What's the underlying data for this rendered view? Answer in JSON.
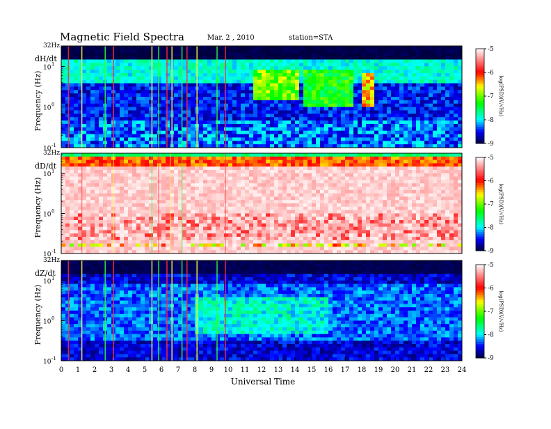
{
  "header": {
    "title": "Magnetic Field Spectra",
    "date": "Mar. 2 , 2010",
    "station": "station=STA"
  },
  "chart_data": {
    "type": "heatmap",
    "xlabel": "Universal Time",
    "xlim": [
      0,
      24
    ],
    "x_ticks": [
      "0",
      "1",
      "2",
      "3",
      "4",
      "5",
      "6",
      "7",
      "8",
      "9",
      "10",
      "11",
      "12",
      "13",
      "14",
      "15",
      "16",
      "17",
      "18",
      "19",
      "20",
      "21",
      "22",
      "23",
      "24"
    ],
    "y_scale": "log",
    "ylim": [
      0.1,
      32
    ],
    "y_top_label": "32Hz",
    "y_ticks": [
      {
        "base": "10",
        "exp": "1",
        "value": 10
      },
      {
        "base": "10",
        "exp": "0",
        "value": 1
      },
      {
        "base": "10",
        "exp": "-1",
        "value": 0.1
      }
    ],
    "colorbar": {
      "label": "log(PSD)(V/√Hz)",
      "range": [
        -9,
        -5
      ],
      "ticks": [
        "-5",
        "-6",
        "-7",
        "-8",
        "-9"
      ],
      "colors": [
        "#ffffff",
        "#ff0000",
        "#ffff00",
        "#00ff00",
        "#00ffff",
        "#0000ff",
        "#000040"
      ]
    },
    "panels": [
      {
        "component": "dH/dt",
        "ylabel": "Frequency (Hz)",
        "background_level": -8.2,
        "notable_features": [
          {
            "time_range_h": [
              11.5,
              14.2
            ],
            "freq_range_hz": [
              1,
              10
            ],
            "level": -6.8
          },
          {
            "time_range_h": [
              18,
              18.8
            ],
            "freq_range_hz": [
              1,
              8
            ],
            "level": -6.3
          }
        ]
      },
      {
        "component": "dD/dt",
        "ylabel": "Frequency (Hz)",
        "background_level": -5.1,
        "notable_features": [
          {
            "time_range_h": [
              0,
              24
            ],
            "freq_range_hz": [
              12,
              32
            ],
            "level": -6.2
          }
        ]
      },
      {
        "component": "dZ/dt",
        "ylabel": "Frequency (Hz)",
        "background_level": -8.4,
        "notable_features": [
          {
            "time_range_h": [
              5.5,
              10
            ],
            "freq_range_hz": [
              0.1,
              32
            ],
            "level": -6.5
          }
        ]
      }
    ]
  }
}
